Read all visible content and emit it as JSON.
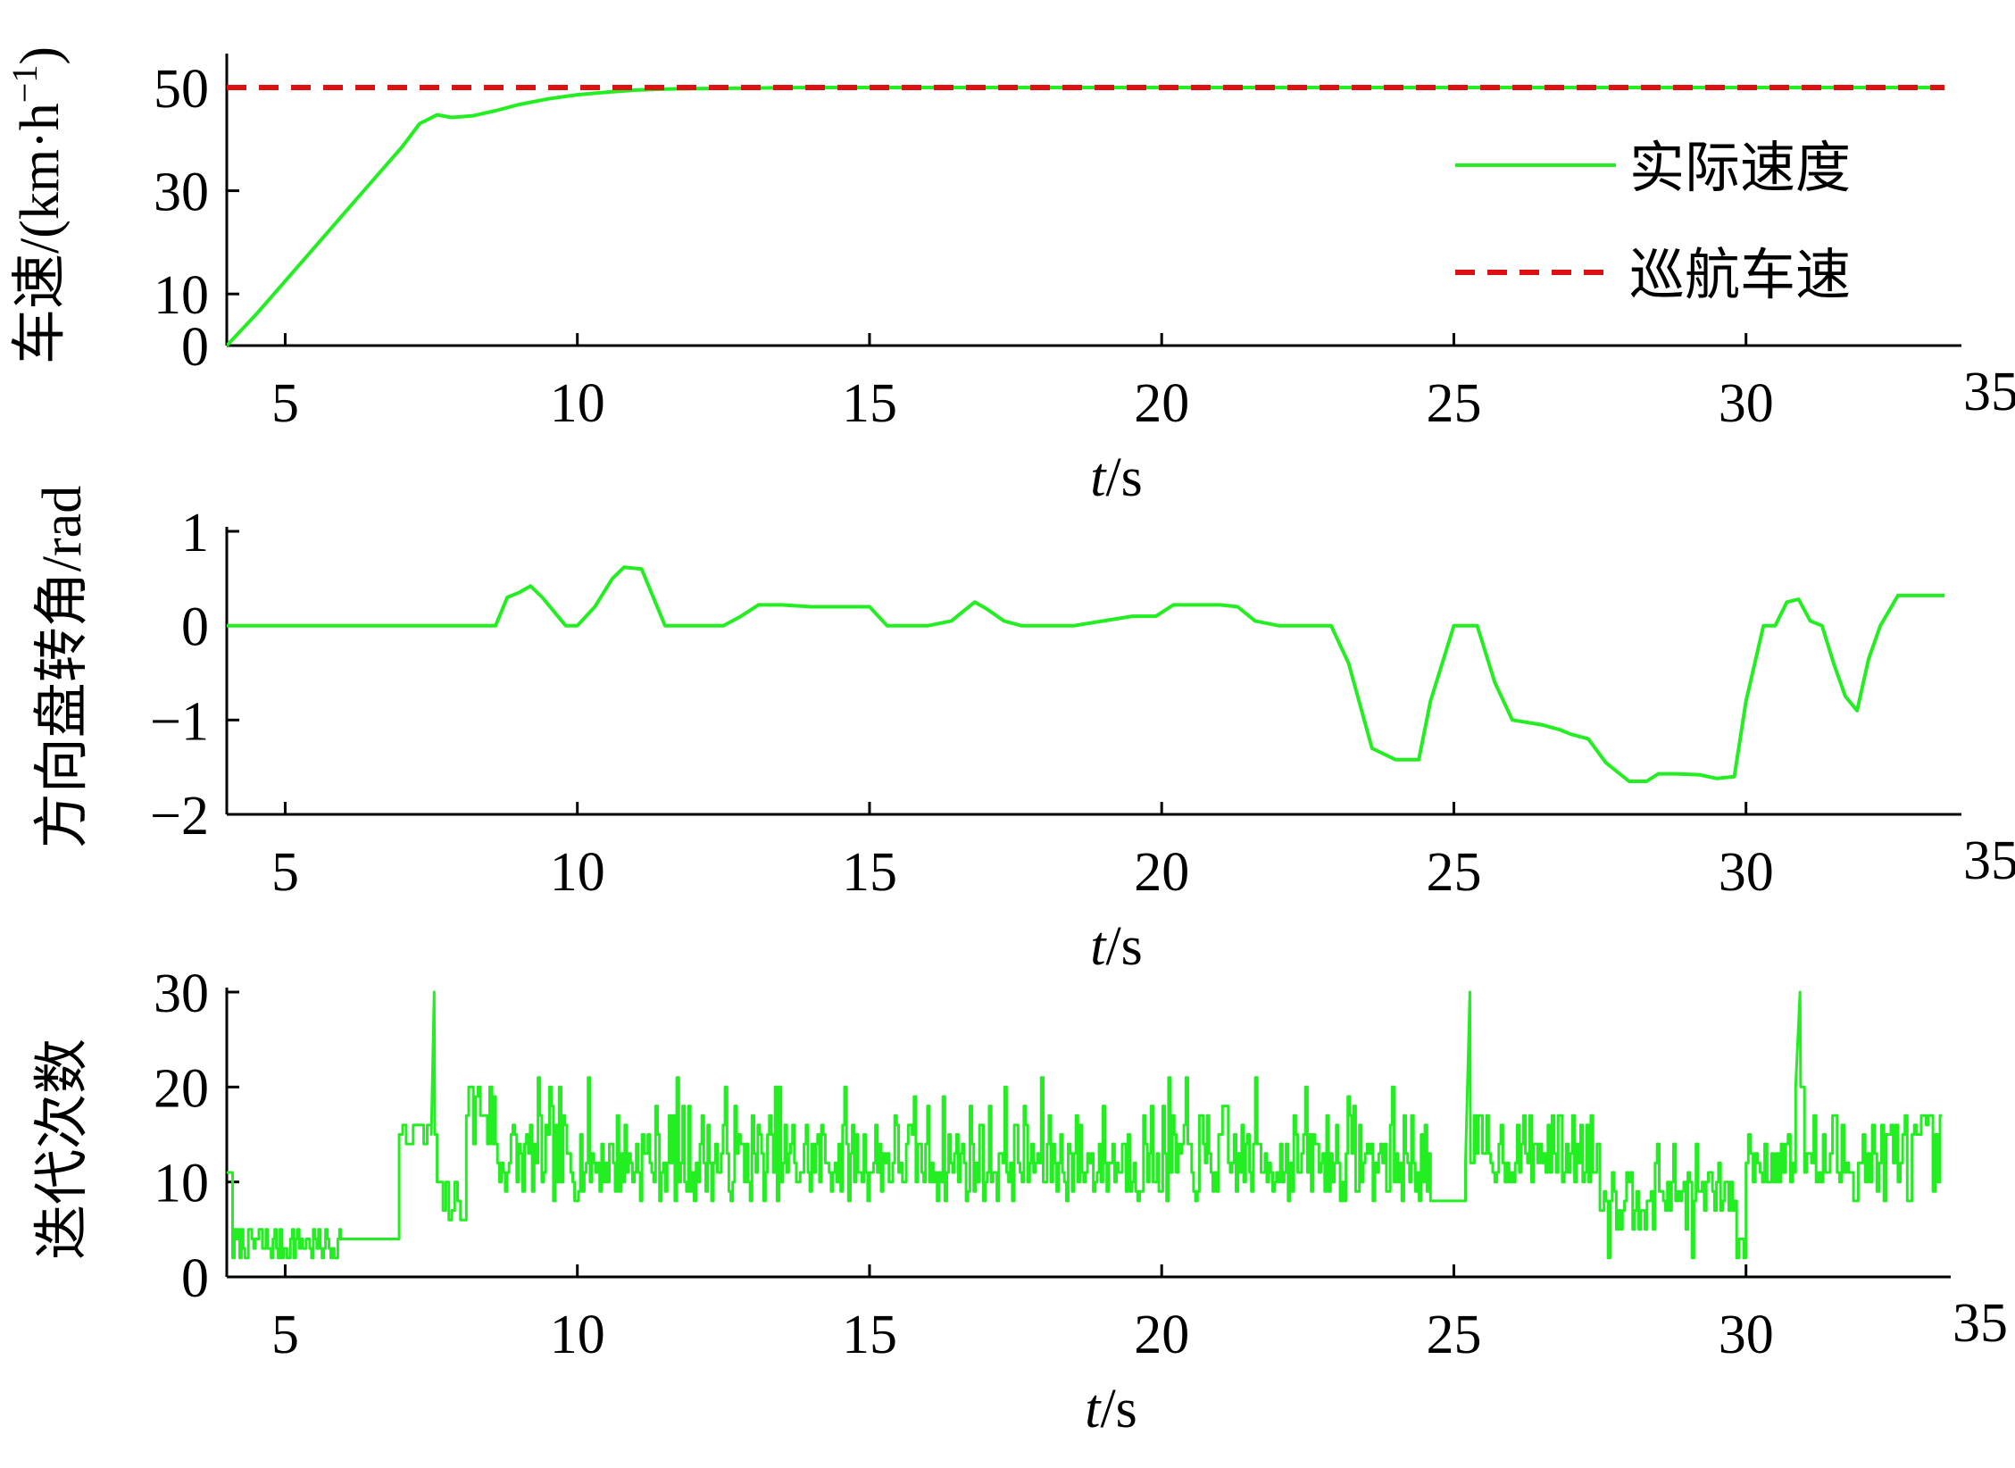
{
  "colors": {
    "actual": "#22ee22",
    "cruise": "#dd1111",
    "axis": "#000000"
  },
  "xaxis": {
    "ticks": [
      5,
      10,
      15,
      20,
      25,
      30,
      35
    ],
    "label_var": "t",
    "label_unit": "/s"
  },
  "chart_data": [
    {
      "type": "line",
      "ylabel_text": "车速/(km·h",
      "ylabel_sup": "−1",
      "ylabel_close": ")",
      "xlim": [
        4,
        33.8
      ],
      "ylim": [
        0,
        55
      ],
      "yticks": [
        0,
        10,
        30,
        50
      ],
      "grid": false,
      "legend_position": "top-right",
      "series": [
        {
          "name": "实际速度",
          "style": "solid",
          "x": [
            4.0,
            4.5,
            5.0,
            5.5,
            6.0,
            6.5,
            7.0,
            7.3,
            7.6,
            7.85,
            8.2,
            8.6,
            9.0,
            9.5,
            10.0,
            10.5,
            11.0,
            11.5,
            12.0,
            13.0,
            14.0,
            16.0,
            20.0,
            25.0,
            30.0,
            33.4
          ],
          "y": [
            0.0,
            6.0,
            12.5,
            19.0,
            25.5,
            32.0,
            38.5,
            43.0,
            44.7,
            44.2,
            44.5,
            45.5,
            46.7,
            47.8,
            48.6,
            49.1,
            49.5,
            49.7,
            49.8,
            49.9,
            50.0,
            50.0,
            50.0,
            50.0,
            50.0,
            50.0
          ]
        },
        {
          "name": "巡航车速",
          "style": "dashed",
          "x": [
            4.0,
            33.4
          ],
          "y": [
            50.0,
            50.0
          ]
        }
      ]
    },
    {
      "type": "line",
      "ylabel_text": "方向盘转角/rad",
      "xlim": [
        4,
        33.8
      ],
      "ylim": [
        -2,
        1
      ],
      "yticks": [
        -2,
        -1,
        0,
        1
      ],
      "grid": false,
      "series": [
        {
          "name": "",
          "style": "solid",
          "x": [
            4.0,
            8.6,
            8.8,
            9.0,
            9.2,
            9.4,
            9.6,
            9.8,
            10.0,
            10.3,
            10.6,
            10.8,
            11.1,
            11.3,
            11.5,
            12.5,
            12.8,
            13.1,
            13.5,
            14.0,
            15.0,
            15.3,
            15.7,
            16.0,
            16.4,
            16.6,
            16.8,
            17.0,
            17.3,
            17.6,
            18.0,
            18.5,
            19.0,
            19.5,
            19.9,
            20.2,
            21.0,
            21.3,
            21.6,
            22.0,
            22.9,
            23.2,
            23.6,
            24.0,
            24.4,
            24.6,
            25.0,
            25.4,
            25.7,
            26.0,
            26.5,
            26.8,
            27.0,
            27.3,
            27.6,
            28.0,
            28.3,
            28.5,
            28.8,
            29.2,
            29.5,
            29.8,
            30.0,
            30.3,
            30.5,
            30.7,
            30.9,
            31.1,
            31.3,
            31.5,
            31.7,
            31.9,
            32.1,
            32.3,
            32.6,
            33.0,
            33.4
          ],
          "y": [
            0.0,
            0.0,
            0.3,
            0.35,
            0.42,
            0.3,
            0.15,
            0.0,
            0.0,
            0.2,
            0.5,
            0.62,
            0.6,
            0.3,
            0.0,
            0.0,
            0.1,
            0.22,
            0.22,
            0.2,
            0.2,
            0.0,
            0.0,
            0.0,
            0.05,
            0.15,
            0.25,
            0.18,
            0.05,
            0.0,
            0.0,
            0.0,
            0.05,
            0.1,
            0.1,
            0.22,
            0.22,
            0.2,
            0.05,
            0.0,
            0.0,
            -0.4,
            -1.3,
            -1.42,
            -1.42,
            -0.8,
            0.0,
            0.0,
            -0.6,
            -1.0,
            -1.05,
            -1.1,
            -1.15,
            -1.2,
            -1.45,
            -1.65,
            -1.65,
            -1.57,
            -1.57,
            -1.58,
            -1.62,
            -1.6,
            -0.8,
            0.0,
            0.0,
            0.25,
            0.28,
            0.05,
            0.0,
            -0.4,
            -0.75,
            -0.9,
            -0.35,
            0.0,
            0.32,
            0.32,
            0.32
          ]
        }
      ]
    },
    {
      "type": "line",
      "ylabel_text": "迭代次数",
      "xlim": [
        4,
        33.6
      ],
      "ylim": [
        0,
        30
      ],
      "yticks": [
        0,
        10,
        20,
        30
      ],
      "grid": false,
      "series": [
        {
          "name": "",
          "style": "solid",
          "generation": {
            "seed": 7,
            "segments": [
              {
                "x0": 4.0,
                "x1": 4.1,
                "mode": "const",
                "v": 11
              },
              {
                "x0": 4.1,
                "x1": 5.95,
                "mode": "noise",
                "values": [
                  2,
                  3,
                  4,
                  5
                ],
                "step": 0.03
              },
              {
                "x0": 5.95,
                "x1": 6.95,
                "mode": "const",
                "v": 4
              },
              {
                "x0": 6.95,
                "x1": 7.5,
                "mode": "noise",
                "values": [
                  15,
                  16,
                  14
                ],
                "step": 0.06
              },
              {
                "x0": 7.5,
                "x1": 7.6,
                "mode": "spike",
                "v": 30,
                "base": 15
              },
              {
                "x0": 7.6,
                "x1": 8.1,
                "mode": "noise",
                "values": [
                  6,
                  7,
                  8,
                  10
                ],
                "step": 0.05
              },
              {
                "x0": 8.1,
                "x1": 8.6,
                "mode": "noise",
                "values": [
                  14,
                  17,
                  19,
                  20
                ],
                "step": 0.04
              },
              {
                "x0": 8.6,
                "x1": 24.6,
                "mode": "noise",
                "values": [
                  8,
                  9,
                  10,
                  11,
                  12,
                  13,
                  14,
                  15,
                  16,
                  17,
                  18,
                  19,
                  20,
                  21
                ],
                "weights": [
                  4,
                  6,
                  10,
                  10,
                  9,
                  8,
                  7,
                  6,
                  4,
                  3,
                  2,
                  1,
                  1,
                  1
                ],
                "step": 0.033
              },
              {
                "x0": 24.6,
                "x1": 25.2,
                "mode": "const",
                "v": 8
              },
              {
                "x0": 25.2,
                "x1": 25.35,
                "mode": "spike",
                "v": 30,
                "base": 12
              },
              {
                "x0": 25.35,
                "x1": 27.5,
                "mode": "noise",
                "values": [
                  10,
                  11,
                  12,
                  13,
                  14,
                  16,
                  17
                ],
                "step": 0.035
              },
              {
                "x0": 27.5,
                "x1": 29.8,
                "mode": "noise",
                "values": [
                  2,
                  5,
                  7,
                  8,
                  9,
                  10,
                  11,
                  12,
                  14
                ],
                "weights": [
                  1,
                  2,
                  4,
                  6,
                  5,
                  5,
                  3,
                  2,
                  1
                ],
                "step": 0.035
              },
              {
                "x0": 29.8,
                "x1": 30.0,
                "mode": "noise",
                "values": [
                  2,
                  4,
                  8
                ],
                "step": 0.04
              },
              {
                "x0": 30.0,
                "x1": 30.85,
                "mode": "noise",
                "values": [
                  10,
                  11,
                  12,
                  13,
                  14,
                  15
                ],
                "step": 0.04
              },
              {
                "x0": 30.85,
                "x1": 31.0,
                "mode": "spike",
                "v": 30,
                "base": 20
              },
              {
                "x0": 31.0,
                "x1": 33.35,
                "mode": "noise",
                "values": [
                  8,
                  9,
                  10,
                  11,
                  12,
                  13,
                  15,
                  16,
                  17
                ],
                "step": 0.04
              }
            ]
          }
        }
      ]
    }
  ]
}
